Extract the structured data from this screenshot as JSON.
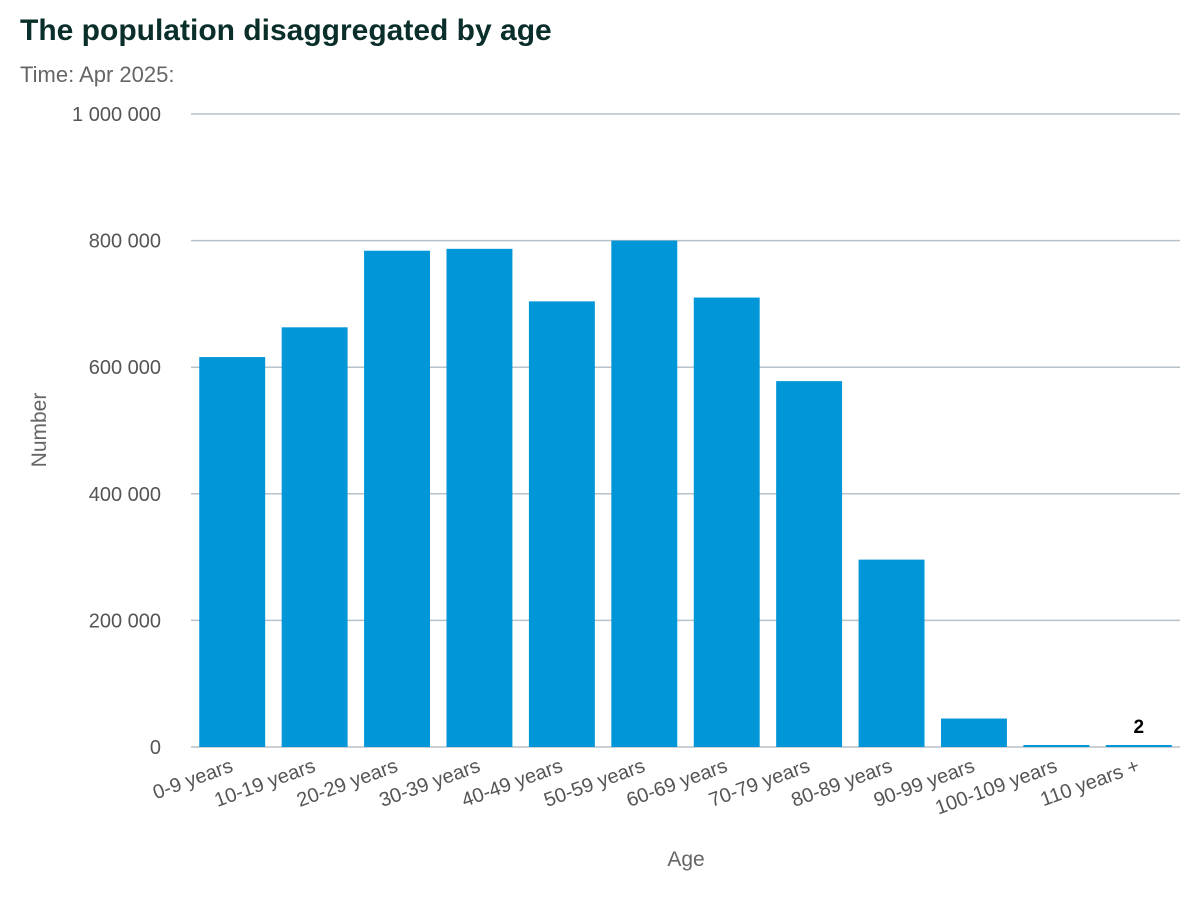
{
  "title": "The population disaggregated by age",
  "subtitle": "Time: Apr 2025:",
  "colors": {
    "bar": "#0096d8",
    "title": "#0a2e2a",
    "gridline": "#b7c2c9"
  },
  "chart_data": {
    "type": "bar",
    "title": "The population disaggregated by age",
    "subtitle": "Time: Apr 2025:",
    "xlabel": "Age",
    "ylabel": "Number",
    "categories": [
      "0-9 years",
      "10-19 years",
      "20-29 years",
      "30-39 years",
      "40-49 years",
      "50-59 years",
      "60-69 years",
      "70-79 years",
      "80-89 years",
      "90-99 years",
      "100-109 years",
      "110 years +"
    ],
    "values": [
      616000,
      663000,
      784000,
      787000,
      704000,
      800000,
      710000,
      578000,
      296000,
      45000,
      2500,
      2
    ],
    "ylim": [
      0,
      1000000
    ],
    "yticks": [
      0,
      200000,
      400000,
      600000,
      800000,
      1000000
    ],
    "ytick_labels": [
      "0",
      "200 000",
      "400 000",
      "600 000",
      "800 000",
      "1 000 000"
    ],
    "data_labels": [
      {
        "category": "110 years +",
        "text": "2"
      }
    ],
    "grid": true,
    "legend": "none"
  }
}
